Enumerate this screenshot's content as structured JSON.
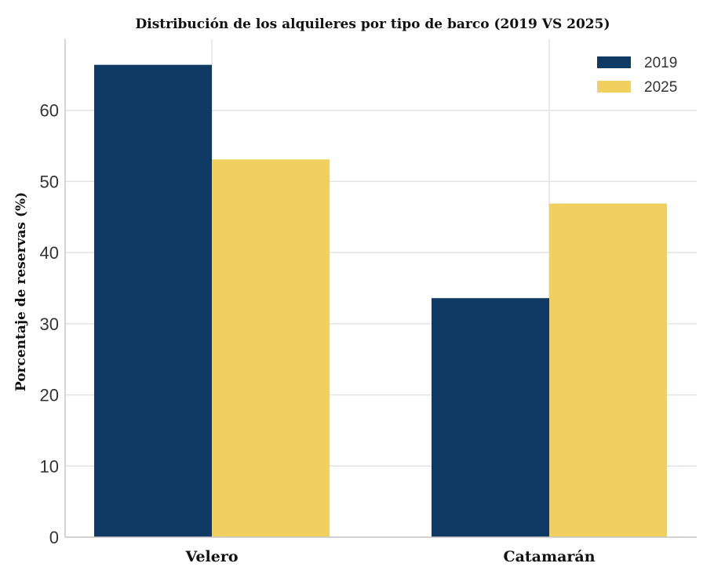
{
  "chart_data": {
    "type": "bar",
    "title": "Distribución de los alquileres por tipo de barco (2019 VS 2025)",
    "xlabel": "",
    "ylabel": "Porcentaje de reservas (%)",
    "categories": [
      "Velero",
      "Catamarán"
    ],
    "series": [
      {
        "name": "2019",
        "values": [
          66.4,
          33.6
        ],
        "color": "#0f3a63"
      },
      {
        "name": "2025",
        "values": [
          53.1,
          46.9
        ],
        "color": "#f2d060"
      }
    ],
    "ylim": [
      0,
      70
    ],
    "yticks": [
      0,
      10,
      20,
      30,
      40,
      50,
      60
    ],
    "grid": true,
    "legend": "top-right"
  }
}
